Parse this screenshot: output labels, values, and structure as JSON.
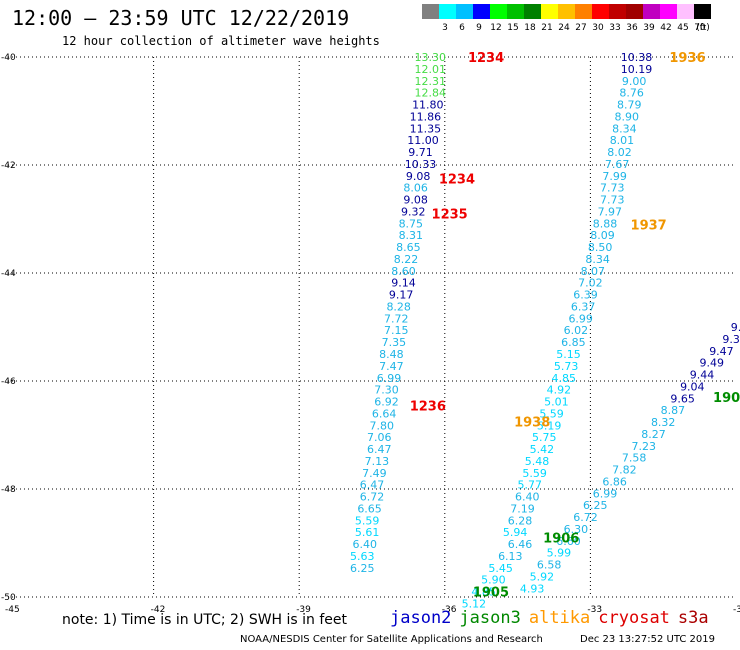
{
  "header": {
    "title": "12:00 – 23:59 UTC 12/22/2019",
    "subtitle": "12 hour collection of altimeter wave heights"
  },
  "color_scale": {
    "unit_label": "(ft)",
    "bins": [
      {
        "label": "3",
        "color": "#808080"
      },
      {
        "label": "6",
        "color": "#00ffff"
      },
      {
        "label": "9",
        "color": "#00c0ff"
      },
      {
        "label": "12",
        "color": "#0000ff"
      },
      {
        "label": "15",
        "color": "#00ff00"
      },
      {
        "label": "18",
        "color": "#00c000"
      },
      {
        "label": "21",
        "color": "#008000"
      },
      {
        "label": "24",
        "color": "#ffff00"
      },
      {
        "label": "27",
        "color": "#ffc000"
      },
      {
        "label": "30",
        "color": "#ff8000"
      },
      {
        "label": "33",
        "color": "#ff0000"
      },
      {
        "label": "36",
        "color": "#c00000"
      },
      {
        "label": "39",
        "color": "#a00000"
      },
      {
        "label": "42",
        "color": "#c000c0"
      },
      {
        "label": "45",
        "color": "#ff00ff"
      },
      {
        "label": "70",
        "color": "#ffc0ff"
      },
      {
        "label": "",
        "color": "#000000"
      }
    ]
  },
  "note": "note: 1) Time is in UTC; 2) SWH is in feet",
  "legend": [
    {
      "name": "jason2",
      "color": "#0000c8"
    },
    {
      "name": "jason3",
      "color": "#008800"
    },
    {
      "name": "altika",
      "color": "#ff9900"
    },
    {
      "name": "cryosat",
      "color": "#dd0000"
    },
    {
      "name": "s3a",
      "color": "#aa0000"
    }
  ],
  "footer": {
    "credit": "NOAA/NESDIS Center for Satellite Applications and Research",
    "timestamp": "Dec 23 13:27:52 UTC 2019"
  },
  "chart_data": {
    "type": "scatter",
    "title": "12:00 – 23:59 UTC 12/22/2019",
    "xlabel": "",
    "ylabel": "",
    "xlim": [
      -45,
      -30
    ],
    "ylim": [
      -50,
      -40
    ],
    "x_ticks": [
      "-45",
      "-42",
      "-39",
      "-36",
      "-33",
      "-30"
    ],
    "y_ticks": [
      "-40",
      "-42",
      "-44",
      "-46",
      "-48",
      "-50"
    ],
    "grid": true,
    "colors": {
      "gray": "#808080",
      "cyan": "#00d8ff",
      "lightblue": "#1eb4e6",
      "navy": "#000096",
      "green": "#46dc46",
      "darkgreen": "#008c00",
      "red": "#ee0000",
      "orange": "#f09600"
    },
    "tracks": [
      {
        "name": "cryosat",
        "points": [
          {
            "lon": -36.3,
            "lat": -40.0,
            "v": "13.30",
            "c": "green"
          },
          {
            "lon": -36.3,
            "lat": -40.22,
            "v": "12.01",
            "c": "green"
          },
          {
            "lon": -36.3,
            "lat": -40.44,
            "v": "12.31",
            "c": "green"
          },
          {
            "lon": -36.3,
            "lat": -40.66,
            "v": "12.84",
            "c": "green"
          },
          {
            "lon": -36.35,
            "lat": -40.88,
            "v": "11.80",
            "c": "navy"
          },
          {
            "lon": -36.4,
            "lat": -41.1,
            "v": "11.86",
            "c": "navy"
          },
          {
            "lon": -36.4,
            "lat": -41.32,
            "v": "11.35",
            "c": "navy"
          },
          {
            "lon": -36.45,
            "lat": -41.54,
            "v": "11.00",
            "c": "navy"
          },
          {
            "lon": -36.5,
            "lat": -41.76,
            "v": "9.71",
            "c": "navy"
          },
          {
            "lon": -36.5,
            "lat": -41.98,
            "v": "10.33",
            "c": "navy"
          },
          {
            "lon": -36.55,
            "lat": -42.2,
            "v": "9.08",
            "c": "navy"
          },
          {
            "lon": -36.6,
            "lat": -42.42,
            "v": "8.06",
            "c": "lightblue"
          },
          {
            "lon": -36.6,
            "lat": -42.64,
            "v": "9.08",
            "c": "navy"
          },
          {
            "lon": -36.65,
            "lat": -42.86,
            "v": "9.32",
            "c": "navy"
          },
          {
            "lon": -36.7,
            "lat": -43.08,
            "v": "8.75",
            "c": "lightblue"
          },
          {
            "lon": -36.7,
            "lat": -43.3,
            "v": "8.31",
            "c": "lightblue"
          },
          {
            "lon": -36.75,
            "lat": -43.52,
            "v": "8.65",
            "c": "lightblue"
          },
          {
            "lon": -36.8,
            "lat": -43.74,
            "v": "8.22",
            "c": "lightblue"
          },
          {
            "lon": -36.85,
            "lat": -43.96,
            "v": "8.60",
            "c": "lightblue"
          },
          {
            "lon": -36.85,
            "lat": -44.18,
            "v": "9.14",
            "c": "navy"
          },
          {
            "lon": -36.9,
            "lat": -44.4,
            "v": "9.17",
            "c": "navy"
          },
          {
            "lon": -36.95,
            "lat": -44.62,
            "v": "8.28",
            "c": "lightblue"
          },
          {
            "lon": -37.0,
            "lat": -44.84,
            "v": "7.72",
            "c": "lightblue"
          },
          {
            "lon": -37.0,
            "lat": -45.06,
            "v": "7.15",
            "c": "lightblue"
          },
          {
            "lon": -37.05,
            "lat": -45.28,
            "v": "7.35",
            "c": "lightblue"
          },
          {
            "lon": -37.1,
            "lat": -45.5,
            "v": "8.48",
            "c": "lightblue"
          },
          {
            "lon": -37.1,
            "lat": -45.72,
            "v": "7.47",
            "c": "lightblue"
          },
          {
            "lon": -37.15,
            "lat": -45.94,
            "v": "6.99",
            "c": "lightblue"
          },
          {
            "lon": -37.2,
            "lat": -46.16,
            "v": "7.30",
            "c": "lightblue"
          },
          {
            "lon": -37.2,
            "lat": -46.38,
            "v": "6.92",
            "c": "lightblue"
          },
          {
            "lon": -37.25,
            "lat": -46.6,
            "v": "6.64",
            "c": "lightblue"
          },
          {
            "lon": -37.3,
            "lat": -46.82,
            "v": "7.80",
            "c": "lightblue"
          },
          {
            "lon": -37.35,
            "lat": -47.04,
            "v": "7.06",
            "c": "lightblue"
          },
          {
            "lon": -37.35,
            "lat": -47.26,
            "v": "6.47",
            "c": "lightblue"
          },
          {
            "lon": -37.4,
            "lat": -47.48,
            "v": "7.13",
            "c": "lightblue"
          },
          {
            "lon": -37.45,
            "lat": -47.7,
            "v": "7.49",
            "c": "lightblue"
          },
          {
            "lon": -37.5,
            "lat": -47.92,
            "v": "6.47",
            "c": "lightblue"
          },
          {
            "lon": -37.5,
            "lat": -48.14,
            "v": "6.72",
            "c": "lightblue"
          },
          {
            "lon": -37.55,
            "lat": -48.36,
            "v": "6.65",
            "c": "lightblue"
          },
          {
            "lon": -37.6,
            "lat": -48.58,
            "v": "5.59",
            "c": "cyan"
          },
          {
            "lon": -37.6,
            "lat": -48.8,
            "v": "5.61",
            "c": "cyan"
          },
          {
            "lon": -37.65,
            "lat": -49.02,
            "v": "6.40",
            "c": "lightblue"
          },
          {
            "lon": -37.7,
            "lat": -49.24,
            "v": "5.63",
            "c": "cyan"
          },
          {
            "lon": -37.7,
            "lat": -49.46,
            "v": "6.25",
            "c": "lightblue"
          }
        ]
      },
      {
        "name": "altika",
        "points": [
          {
            "lon": -32.05,
            "lat": -40.0,
            "v": "10.38",
            "c": "navy"
          },
          {
            "lon": -32.05,
            "lat": -40.22,
            "v": "10.19",
            "c": "navy"
          },
          {
            "lon": -32.1,
            "lat": -40.44,
            "v": "9.00",
            "c": "lightblue"
          },
          {
            "lon": -32.15,
            "lat": -40.66,
            "v": "8.76",
            "c": "lightblue"
          },
          {
            "lon": -32.2,
            "lat": -40.88,
            "v": "8.79",
            "c": "lightblue"
          },
          {
            "lon": -32.25,
            "lat": -41.1,
            "v": "8.90",
            "c": "lightblue"
          },
          {
            "lon": -32.3,
            "lat": -41.32,
            "v": "8.34",
            "c": "lightblue"
          },
          {
            "lon": -32.35,
            "lat": -41.54,
            "v": "8.01",
            "c": "lightblue"
          },
          {
            "lon": -32.4,
            "lat": -41.76,
            "v": "8.02",
            "c": "lightblue"
          },
          {
            "lon": -32.45,
            "lat": -41.98,
            "v": "7.67",
            "c": "lightblue"
          },
          {
            "lon": -32.5,
            "lat": -42.2,
            "v": "7.99",
            "c": "lightblue"
          },
          {
            "lon": -32.55,
            "lat": -42.42,
            "v": "7.73",
            "c": "lightblue"
          },
          {
            "lon": -32.55,
            "lat": -42.64,
            "v": "7.73",
            "c": "lightblue"
          },
          {
            "lon": -32.6,
            "lat": -42.86,
            "v": "7.97",
            "c": "lightblue"
          },
          {
            "lon": -32.7,
            "lat": -43.08,
            "v": "8.88",
            "c": "lightblue"
          },
          {
            "lon": -32.75,
            "lat": -43.3,
            "v": "8.09",
            "c": "lightblue"
          },
          {
            "lon": -32.8,
            "lat": -43.52,
            "v": "8.50",
            "c": "lightblue"
          },
          {
            "lon": -32.85,
            "lat": -43.74,
            "v": "8.34",
            "c": "lightblue"
          },
          {
            "lon": -32.95,
            "lat": -43.96,
            "v": "8.07",
            "c": "lightblue"
          },
          {
            "lon": -33.0,
            "lat": -44.18,
            "v": "7.02",
            "c": "lightblue"
          },
          {
            "lon": -33.1,
            "lat": -44.4,
            "v": "6.39",
            "c": "lightblue"
          },
          {
            "lon": -33.15,
            "lat": -44.62,
            "v": "6.37",
            "c": "lightblue"
          },
          {
            "lon": -33.2,
            "lat": -44.84,
            "v": "6.99",
            "c": "lightblue"
          },
          {
            "lon": -33.3,
            "lat": -45.06,
            "v": "6.02",
            "c": "lightblue"
          },
          {
            "lon": -33.35,
            "lat": -45.28,
            "v": "6.85",
            "c": "lightblue"
          },
          {
            "lon": -33.45,
            "lat": -45.5,
            "v": "5.15",
            "c": "cyan"
          },
          {
            "lon": -33.5,
            "lat": -45.72,
            "v": "5.73",
            "c": "cyan"
          },
          {
            "lon": -33.55,
            "lat": -45.94,
            "v": "4.85",
            "c": "cyan"
          },
          {
            "lon": -33.65,
            "lat": -46.16,
            "v": "4.92",
            "c": "cyan"
          },
          {
            "lon": -33.7,
            "lat": -46.38,
            "v": "5.01",
            "c": "cyan"
          },
          {
            "lon": -33.8,
            "lat": -46.6,
            "v": "5.59",
            "c": "cyan"
          },
          {
            "lon": -33.85,
            "lat": -46.82,
            "v": "5.19",
            "c": "cyan"
          },
          {
            "lon": -33.95,
            "lat": -47.04,
            "v": "5.75",
            "c": "cyan"
          },
          {
            "lon": -34.0,
            "lat": -47.26,
            "v": "5.42",
            "c": "cyan"
          },
          {
            "lon": -34.1,
            "lat": -47.48,
            "v": "5.48",
            "c": "cyan"
          },
          {
            "lon": -34.15,
            "lat": -47.7,
            "v": "5.59",
            "c": "cyan"
          },
          {
            "lon": -34.25,
            "lat": -47.92,
            "v": "5.77",
            "c": "cyan"
          },
          {
            "lon": -34.3,
            "lat": -48.14,
            "v": "6.40",
            "c": "lightblue"
          },
          {
            "lon": -34.4,
            "lat": -48.36,
            "v": "7.19",
            "c": "lightblue"
          },
          {
            "lon": -34.45,
            "lat": -48.58,
            "v": "6.28",
            "c": "lightblue"
          },
          {
            "lon": -34.55,
            "lat": -48.8,
            "v": "5.94",
            "c": "cyan"
          }
        ]
      },
      {
        "name": "jason3",
        "points": [
          {
            "lon": -30.0,
            "lat": -45.0,
            "v": "9.",
            "c": "navy"
          },
          {
            "lon": -30.1,
            "lat": -45.22,
            "v": "9.3",
            "c": "navy"
          },
          {
            "lon": -30.3,
            "lat": -45.44,
            "v": "9.47",
            "c": "navy"
          },
          {
            "lon": -30.5,
            "lat": -45.66,
            "v": "9.49",
            "c": "navy"
          },
          {
            "lon": -30.7,
            "lat": -45.88,
            "v": "9.44",
            "c": "navy"
          },
          {
            "lon": -30.9,
            "lat": -46.1,
            "v": "9.04",
            "c": "navy"
          },
          {
            "lon": -31.1,
            "lat": -46.32,
            "v": "9.65",
            "c": "navy"
          },
          {
            "lon": -31.3,
            "lat": -46.54,
            "v": "8.87",
            "c": "lightblue"
          },
          {
            "lon": -31.5,
            "lat": -46.76,
            "v": "8.32",
            "c": "lightblue"
          },
          {
            "lon": -31.7,
            "lat": -46.98,
            "v": "8.27",
            "c": "lightblue"
          },
          {
            "lon": -31.9,
            "lat": -47.2,
            "v": "7.23",
            "c": "lightblue"
          },
          {
            "lon": -32.1,
            "lat": -47.42,
            "v": "7.58",
            "c": "lightblue"
          },
          {
            "lon": -32.3,
            "lat": -47.64,
            "v": "7.82",
            "c": "lightblue"
          },
          {
            "lon": -32.5,
            "lat": -47.86,
            "v": "6.86",
            "c": "lightblue"
          },
          {
            "lon": -32.7,
            "lat": -48.08,
            "v": "6.99",
            "c": "lightblue"
          },
          {
            "lon": -32.9,
            "lat": -48.3,
            "v": "6.25",
            "c": "lightblue"
          },
          {
            "lon": -33.1,
            "lat": -48.52,
            "v": "6.72",
            "c": "lightblue"
          },
          {
            "lon": -33.3,
            "lat": -48.74,
            "v": "6.30",
            "c": "lightblue"
          },
          {
            "lon": -33.45,
            "lat": -48.96,
            "v": "6.60",
            "c": "lightblue"
          },
          {
            "lon": -33.65,
            "lat": -49.18,
            "v": "5.99",
            "c": "cyan"
          },
          {
            "lon": -33.85,
            "lat": -49.4,
            "v": "6.58",
            "c": "lightblue"
          },
          {
            "lon": -34.0,
            "lat": -49.62,
            "v": "5.92",
            "c": "cyan"
          },
          {
            "lon": -34.2,
            "lat": -49.84,
            "v": "4.93",
            "c": "cyan"
          }
        ]
      },
      {
        "name": "jason3-south",
        "points": [
          {
            "lon": -34.45,
            "lat": -49.02,
            "v": "6.46",
            "c": "lightblue"
          },
          {
            "lon": -34.65,
            "lat": -49.24,
            "v": "6.13",
            "c": "lightblue"
          },
          {
            "lon": -34.85,
            "lat": -49.46,
            "v": "5.45",
            "c": "cyan"
          },
          {
            "lon": -35.0,
            "lat": -49.68,
            "v": "5.90",
            "c": "cyan"
          },
          {
            "lon": -35.2,
            "lat": -49.9,
            "v": "4.85",
            "c": "cyan"
          },
          {
            "lon": -35.4,
            "lat": -50.12,
            "v": "5.12",
            "c": "cyan"
          }
        ]
      }
    ],
    "time_labels": [
      {
        "lon": -35.15,
        "lat": -40.0,
        "text": "1234",
        "c": "red"
      },
      {
        "lon": -31.0,
        "lat": -40.0,
        "text": "1936",
        "c": "orange"
      },
      {
        "lon": -35.75,
        "lat": -42.25,
        "text": "1234",
        "c": "red"
      },
      {
        "lon": -35.9,
        "lat": -42.9,
        "text": "1235",
        "c": "red"
      },
      {
        "lon": -31.8,
        "lat": -43.1,
        "text": "1937",
        "c": "orange"
      },
      {
        "lon": -36.35,
        "lat": -46.45,
        "text": "1236",
        "c": "red"
      },
      {
        "lon": -30.1,
        "lat": -46.3,
        "text": "1907",
        "c": "darkgreen"
      },
      {
        "lon": -34.2,
        "lat": -46.75,
        "text": "1938",
        "c": "orange"
      },
      {
        "lon": -33.6,
        "lat": -48.9,
        "text": "1906",
        "c": "darkgreen"
      },
      {
        "lon": -35.05,
        "lat": -49.9,
        "text": "1905",
        "c": "darkgreen"
      }
    ]
  }
}
